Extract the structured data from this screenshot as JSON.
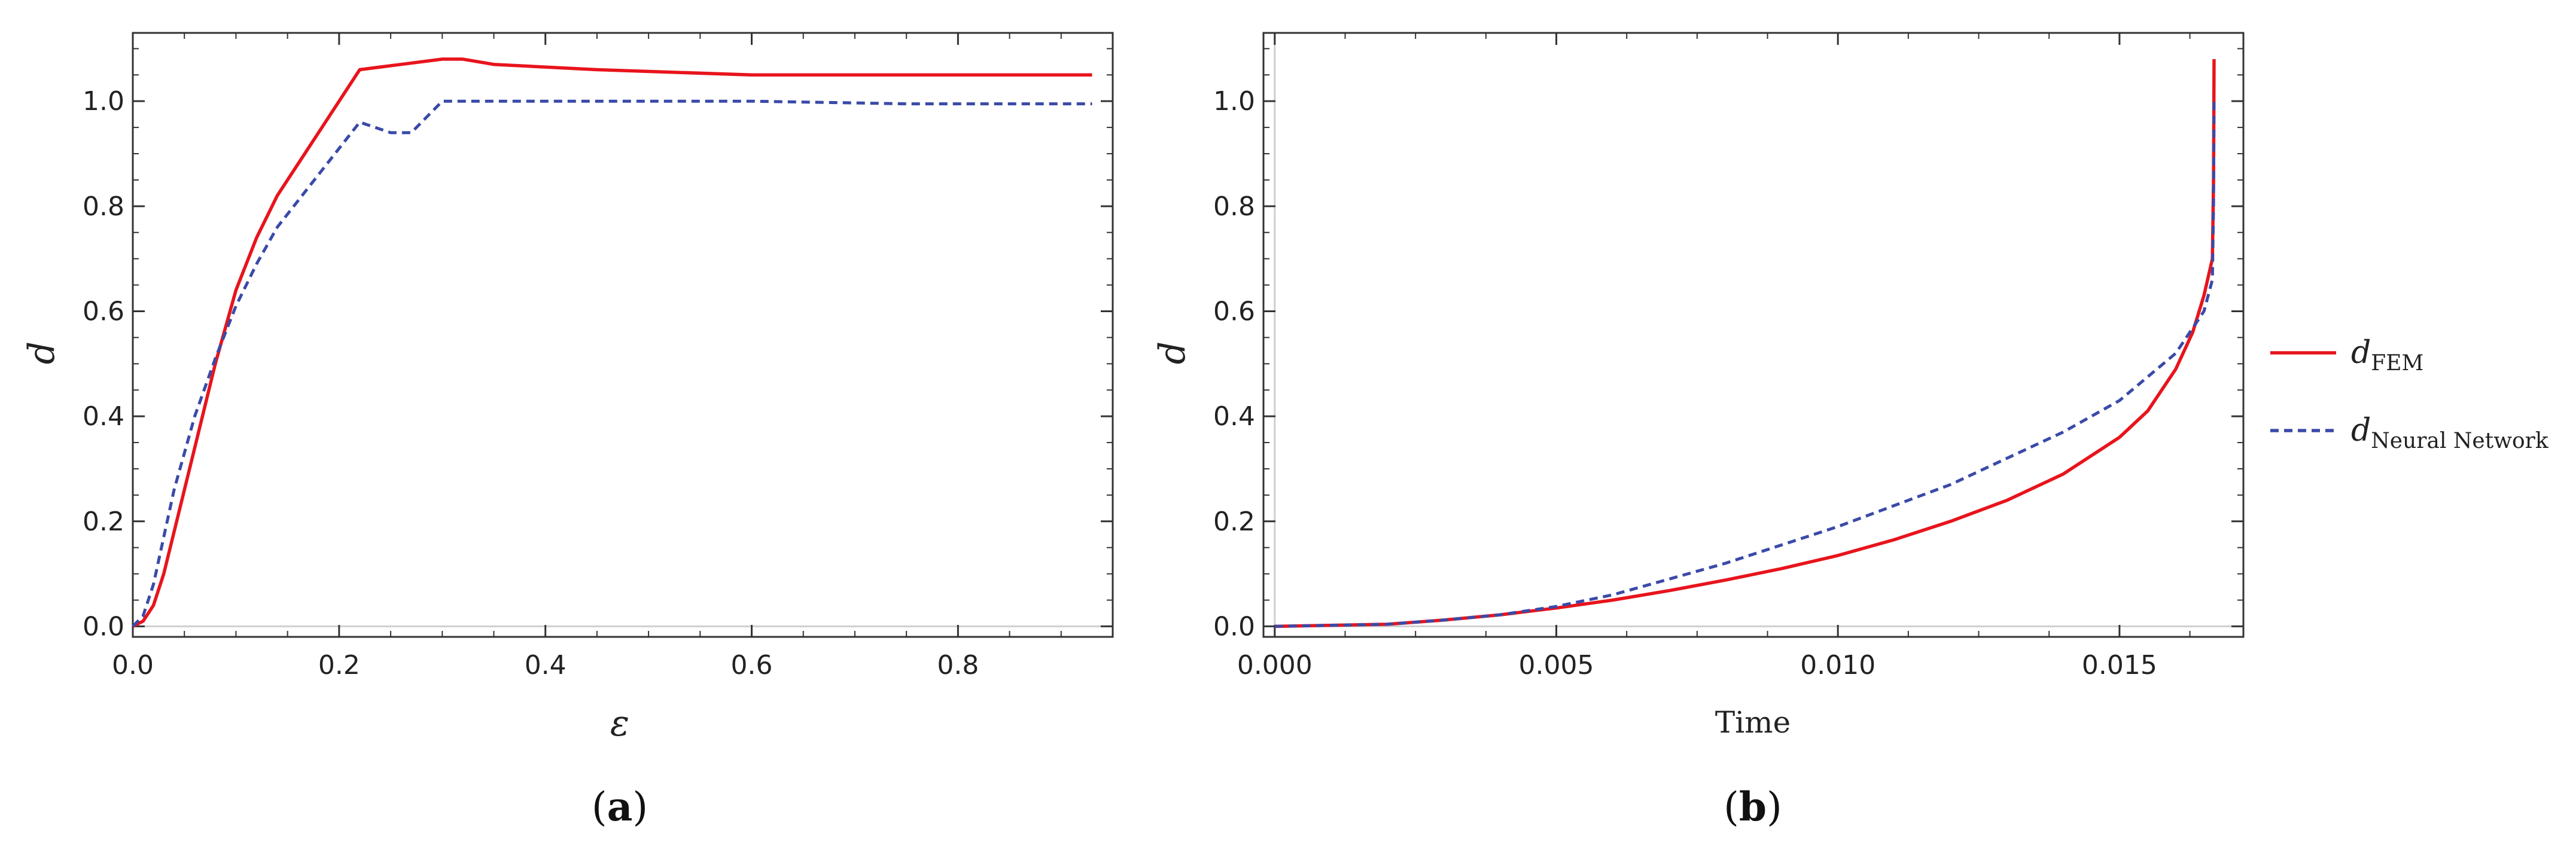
{
  "chart_data": [
    {
      "type": "line",
      "caption": {
        "open": "(",
        "letter": "a",
        "close": ")"
      },
      "xlabel": "ε",
      "ylabel": "d",
      "xlim": [
        0,
        0.95
      ],
      "ylim": [
        -0.02,
        1.13
      ],
      "xticks": [
        "0.0",
        "0.2",
        "0.4",
        "0.6",
        "0.8"
      ],
      "xtick_values": [
        0,
        0.2,
        0.4,
        0.6,
        0.8
      ],
      "yticks": [
        "0.0",
        "0.2",
        "0.4",
        "0.6",
        "0.8",
        "1.0"
      ],
      "ytick_values": [
        0,
        0.2,
        0.4,
        0.6,
        0.8,
        1.0
      ],
      "series": [
        {
          "name": "FEM",
          "color": "#e8141c",
          "style": "solid",
          "x": [
            0.0,
            0.01,
            0.02,
            0.03,
            0.04,
            0.06,
            0.08,
            0.1,
            0.12,
            0.14,
            0.18,
            0.22,
            0.26,
            0.3,
            0.32,
            0.35,
            0.45,
            0.6,
            0.75,
            0.93
          ],
          "y": [
            0.0,
            0.01,
            0.04,
            0.1,
            0.18,
            0.34,
            0.5,
            0.64,
            0.74,
            0.82,
            0.94,
            1.06,
            1.07,
            1.08,
            1.08,
            1.07,
            1.06,
            1.05,
            1.05,
            1.05
          ]
        },
        {
          "name": "Neural Network",
          "color": "#3a4aa8",
          "style": "dashed",
          "x": [
            0.0,
            0.01,
            0.02,
            0.03,
            0.04,
            0.06,
            0.08,
            0.1,
            0.12,
            0.14,
            0.18,
            0.22,
            0.25,
            0.27,
            0.3,
            0.35,
            0.45,
            0.6,
            0.75,
            0.93
          ],
          "y": [
            0.0,
            0.02,
            0.08,
            0.17,
            0.26,
            0.4,
            0.51,
            0.61,
            0.69,
            0.76,
            0.86,
            0.96,
            0.94,
            0.94,
            1.0,
            1.0,
            1.0,
            1.0,
            0.995,
            0.995
          ]
        }
      ]
    },
    {
      "type": "line",
      "caption": {
        "open": "(",
        "letter": "b",
        "close": ")"
      },
      "xlabel": "Time",
      "ylabel": "d",
      "xlim": [
        -0.0002,
        0.0172
      ],
      "ylim": [
        -0.02,
        1.13
      ],
      "xticks": [
        "0.000",
        "0.005",
        "0.010",
        "0.015"
      ],
      "xtick_values": [
        0,
        0.005,
        0.01,
        0.015
      ],
      "yticks": [
        "0.0",
        "0.2",
        "0.4",
        "0.6",
        "0.8",
        "1.0"
      ],
      "ytick_values": [
        0,
        0.2,
        0.4,
        0.6,
        0.8,
        1.0
      ],
      "legend": {
        "position": "right",
        "entries": [
          {
            "base": "d",
            "sub": "FEM"
          },
          {
            "base": "d",
            "sub": "Neural Network"
          }
        ]
      },
      "series": [
        {
          "name": "FEM",
          "color": "#e8141c",
          "style": "solid",
          "x": [
            0.0,
            0.002,
            0.003,
            0.004,
            0.005,
            0.006,
            0.007,
            0.008,
            0.009,
            0.01,
            0.011,
            0.012,
            0.013,
            0.014,
            0.015,
            0.0155,
            0.016,
            0.0163,
            0.0165,
            0.01665,
            0.01667,
            0.01668
          ],
          "y": [
            0.0,
            0.004,
            0.012,
            0.022,
            0.035,
            0.05,
            0.068,
            0.088,
            0.11,
            0.135,
            0.165,
            0.2,
            0.24,
            0.29,
            0.36,
            0.41,
            0.49,
            0.56,
            0.63,
            0.7,
            0.85,
            1.08
          ]
        },
        {
          "name": "Neural Network",
          "color": "#3a4aa8",
          "style": "dashed",
          "x": [
            0.0,
            0.002,
            0.003,
            0.004,
            0.005,
            0.006,
            0.007,
            0.008,
            0.009,
            0.01,
            0.011,
            0.012,
            0.013,
            0.014,
            0.015,
            0.016,
            0.0165,
            0.01665,
            0.01667,
            0.01668
          ],
          "y": [
            0.0,
            0.004,
            0.012,
            0.022,
            0.038,
            0.06,
            0.09,
            0.12,
            0.155,
            0.19,
            0.23,
            0.27,
            0.32,
            0.37,
            0.43,
            0.52,
            0.6,
            0.66,
            0.8,
            1.0
          ]
        }
      ]
    }
  ]
}
